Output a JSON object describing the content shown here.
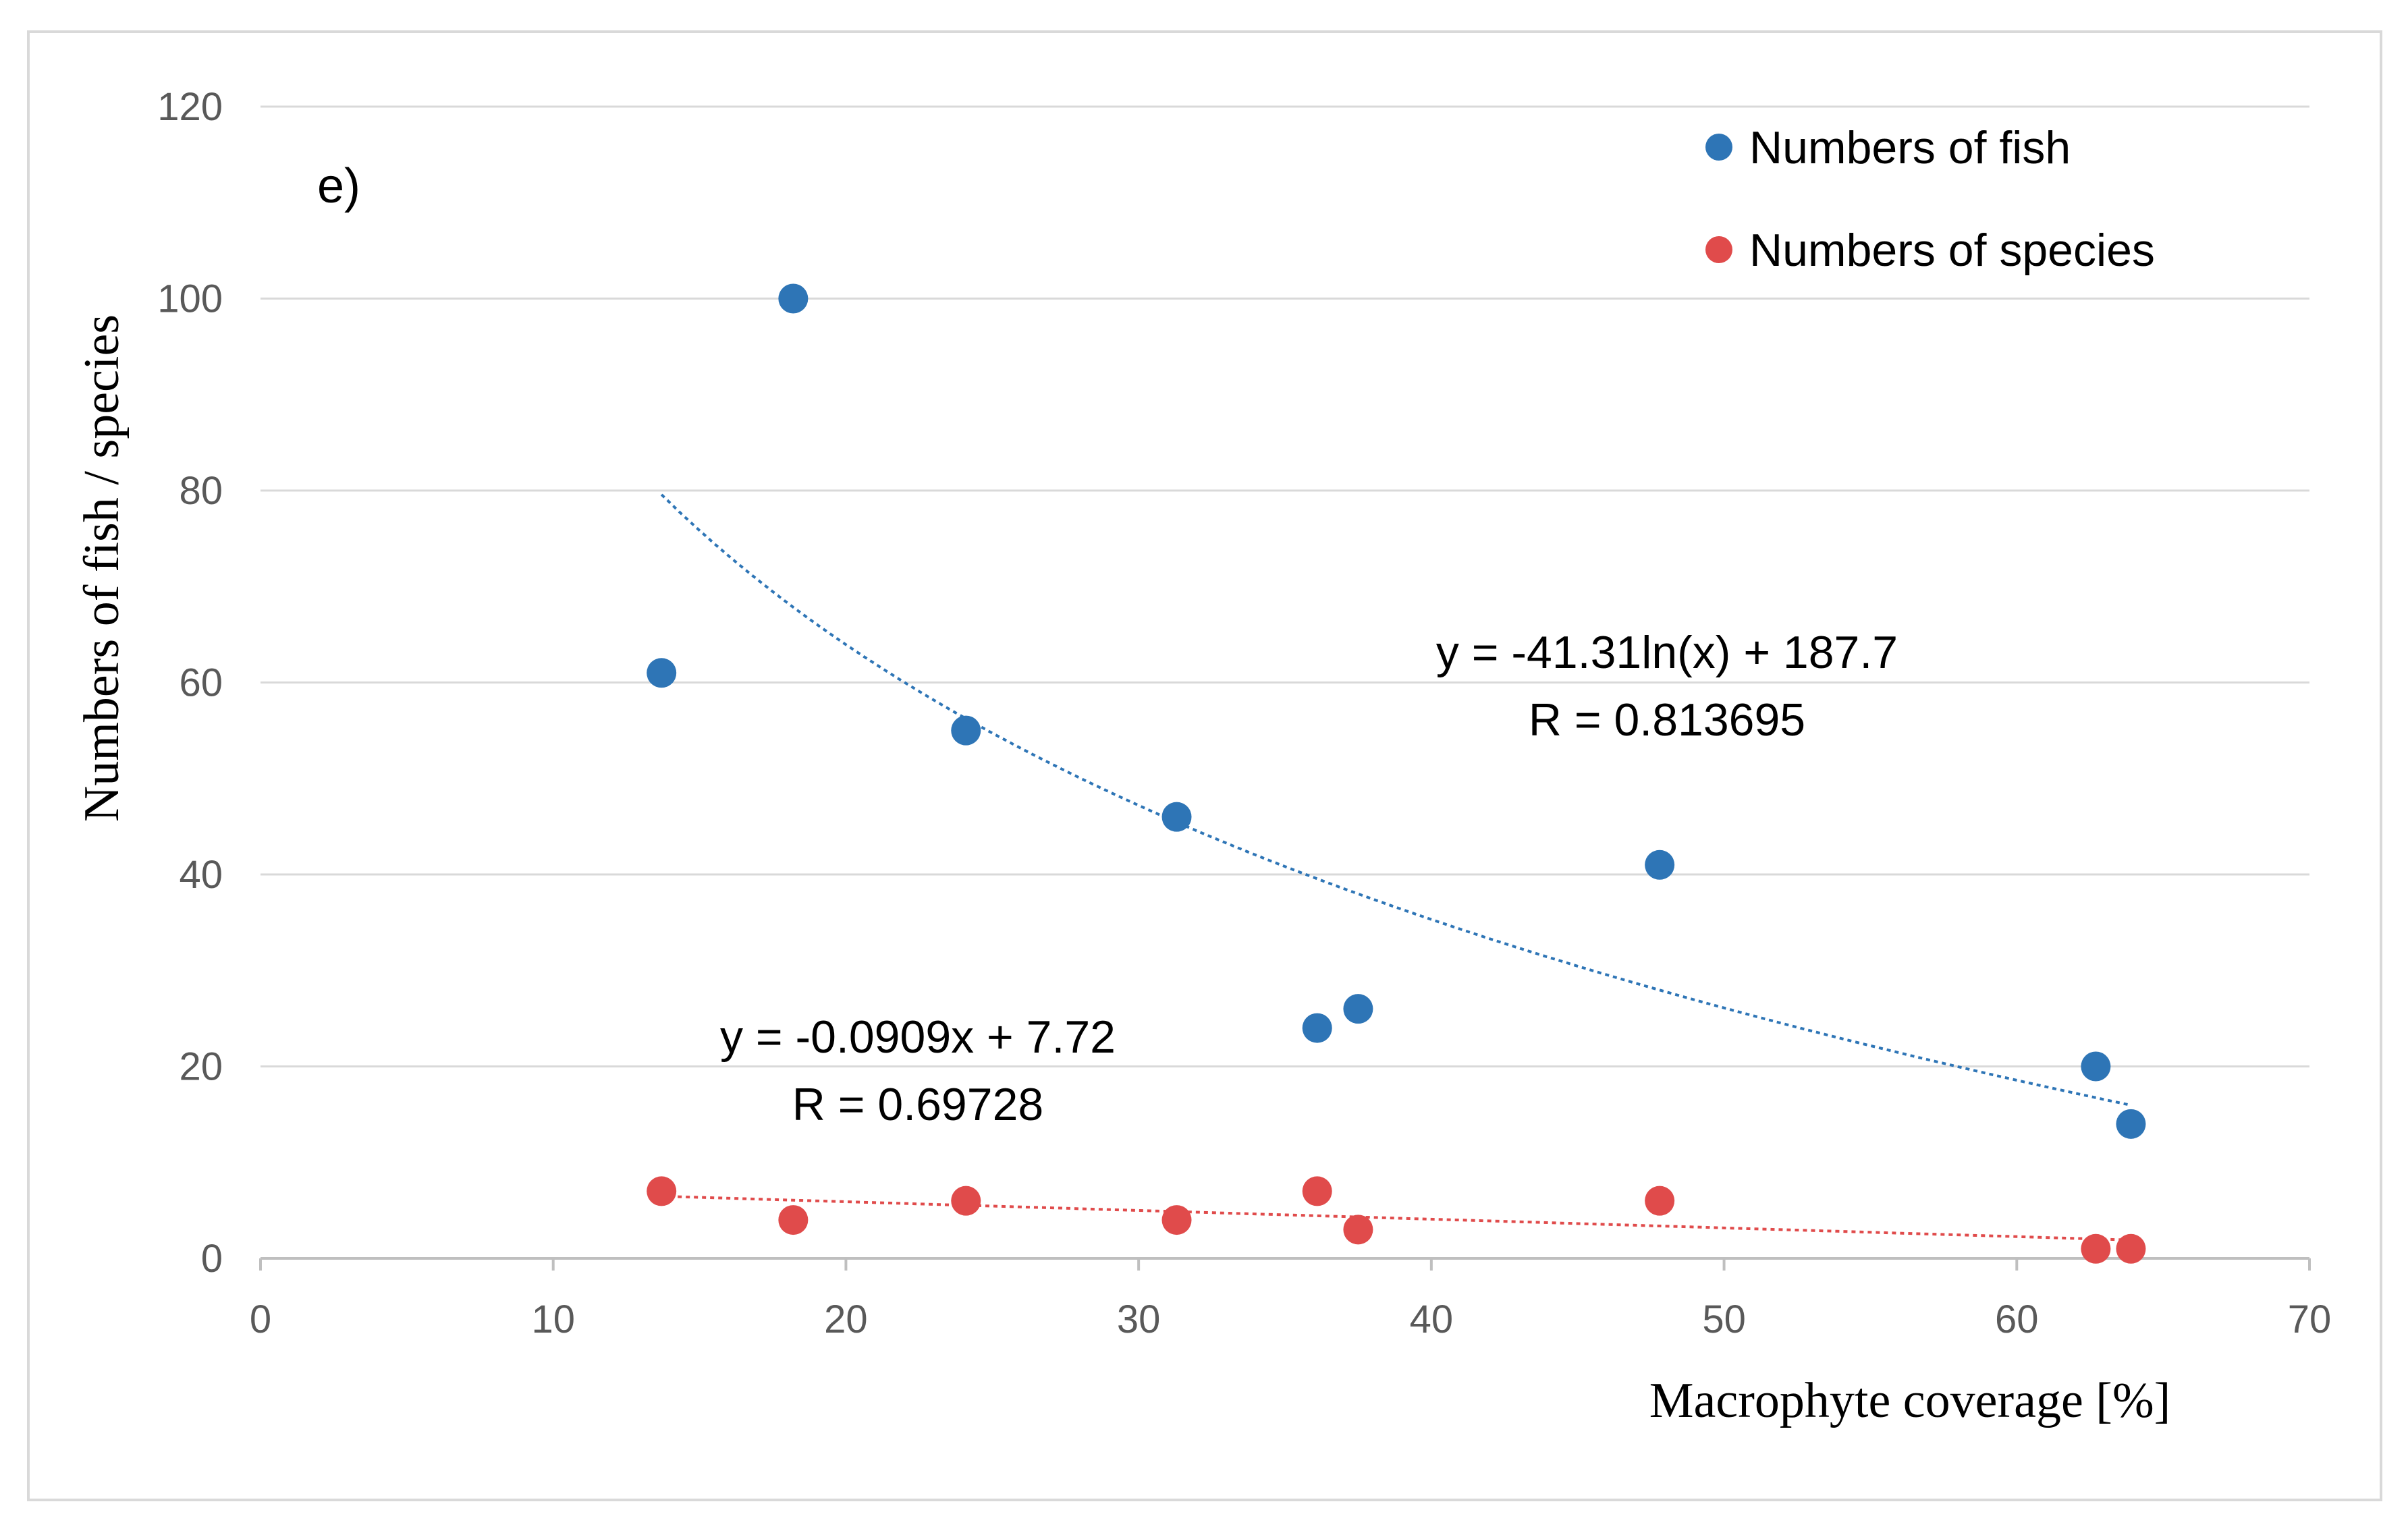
{
  "chart_data": {
    "type": "scatter",
    "panel_label": "e)",
    "xlabel": "Macrophyte  coverage [%]",
    "ylabel": "Numbers of fish / species",
    "xlim": [
      0,
      70
    ],
    "ylim": [
      0,
      120
    ],
    "x_ticks": [
      0,
      10,
      20,
      30,
      40,
      50,
      60,
      70
    ],
    "y_ticks": [
      0,
      20,
      40,
      60,
      80,
      100,
      120
    ],
    "grid": "horizontal",
    "legend_position": "top-right",
    "series": [
      {
        "name": "Numbers of fish",
        "color": "#2e75b6",
        "x": [
          13.7,
          18.2,
          24.1,
          31.3,
          36.1,
          37.5,
          47.8,
          62.7,
          63.9
        ],
        "y": [
          61,
          100,
          55,
          46,
          24,
          26,
          41,
          20,
          14
        ],
        "trendline": {
          "type": "logarithmic",
          "a": -41.31,
          "b": 187.7,
          "x_range": [
            13.7,
            63.9
          ],
          "equation": "y = -41.31ln(x) + 187.7",
          "r_label": "R = 0.813695"
        }
      },
      {
        "name": "Numbers of species",
        "color": "#e04b4b",
        "x": [
          13.7,
          18.2,
          24.1,
          31.3,
          36.1,
          37.5,
          47.8,
          62.7,
          63.9
        ],
        "y": [
          7,
          4,
          6,
          4,
          7,
          3,
          6,
          1,
          1
        ],
        "trendline": {
          "type": "linear",
          "slope": -0.0909,
          "intercept": 7.72,
          "x_range": [
            13.7,
            63.9
          ],
          "equation": "y = -0.0909x + 7.72",
          "r_label": "R = 0.69728"
        }
      }
    ]
  }
}
